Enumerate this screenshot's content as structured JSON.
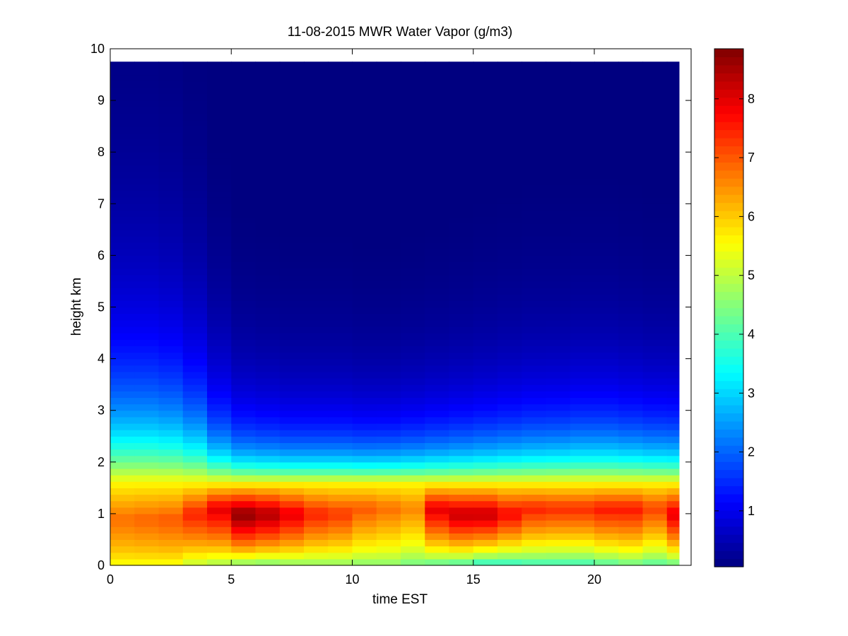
{
  "chart_data": {
    "type": "heatmap",
    "title": "11-08-2015 MWR Water Vapor (g/m3)",
    "xlabel": "time EST",
    "ylabel": "height km",
    "xlim": [
      0,
      24
    ],
    "ylim": [
      0,
      10
    ],
    "x_ticks": [
      0,
      5,
      10,
      15,
      20
    ],
    "y_ticks": [
      0,
      1,
      2,
      3,
      4,
      5,
      6,
      7,
      8,
      9,
      10
    ],
    "colorbar": {
      "colormap": "jet",
      "range": [
        0.05,
        8.85
      ],
      "ticks": [
        1,
        2,
        3,
        4,
        5,
        6,
        7,
        8
      ]
    },
    "grid": false,
    "units": "g/m3",
    "x_extent": [
      0,
      23.5
    ],
    "y_extent": [
      0,
      9.75
    ],
    "time_step_hours": 1,
    "description": "Column water vapor density (g/m3) versus time of day (EST, hourly) and height (km). High values (6-8.8) concentrated in a 0.4-1.6 km layer; drops sharply above about 2 km; upper levels near 0.",
    "surface_layer_value_by_hour": [
      5.6,
      5.6,
      5.6,
      5.2,
      5.0,
      4.8,
      4.7,
      4.8,
      4.8,
      4.8,
      4.7,
      4.7,
      4.5,
      4.4,
      4.3,
      4.0,
      4.0,
      4.1,
      4.1,
      4.1,
      4.3,
      4.5,
      4.3,
      4.5
    ],
    "peak_value_by_hour": [
      6.8,
      6.9,
      7.0,
      7.5,
      8.0,
      8.8,
      8.5,
      8.0,
      7.5,
      7.3,
      7.0,
      6.8,
      6.6,
      8.0,
      8.3,
      8.3,
      7.8,
      7.5,
      7.4,
      7.4,
      7.6,
      7.6,
      7.2,
      8.0
    ],
    "peak_height_km_by_hour": [
      0.9,
      0.9,
      0.9,
      1.0,
      1.1,
      1.0,
      1.0,
      1.0,
      1.0,
      1.0,
      1.1,
      1.1,
      1.1,
      1.1,
      1.0,
      1.0,
      1.0,
      1.1,
      1.1,
      1.1,
      1.1,
      1.1,
      1.1,
      1.0
    ],
    "decay_height_km_by_hour": [
      2.5,
      2.5,
      2.4,
      2.1,
      1.6,
      1.3,
      1.25,
      1.2,
      1.2,
      1.2,
      1.15,
      1.15,
      1.2,
      1.25,
      1.3,
      1.35,
      1.4,
      1.45,
      1.45,
      1.5,
      1.5,
      1.45,
      1.4,
      1.4
    ],
    "tail_height_km_by_hour": [
      1.7,
      1.7,
      1.6,
      1.3,
      0.8,
      0.65,
      0.62,
      0.6,
      0.6,
      0.6,
      0.6,
      0.62,
      0.65,
      0.7,
      0.75,
      0.8,
      0.85,
      0.9,
      0.95,
      1.0,
      1.0,
      0.95,
      0.9,
      0.85
    ]
  }
}
